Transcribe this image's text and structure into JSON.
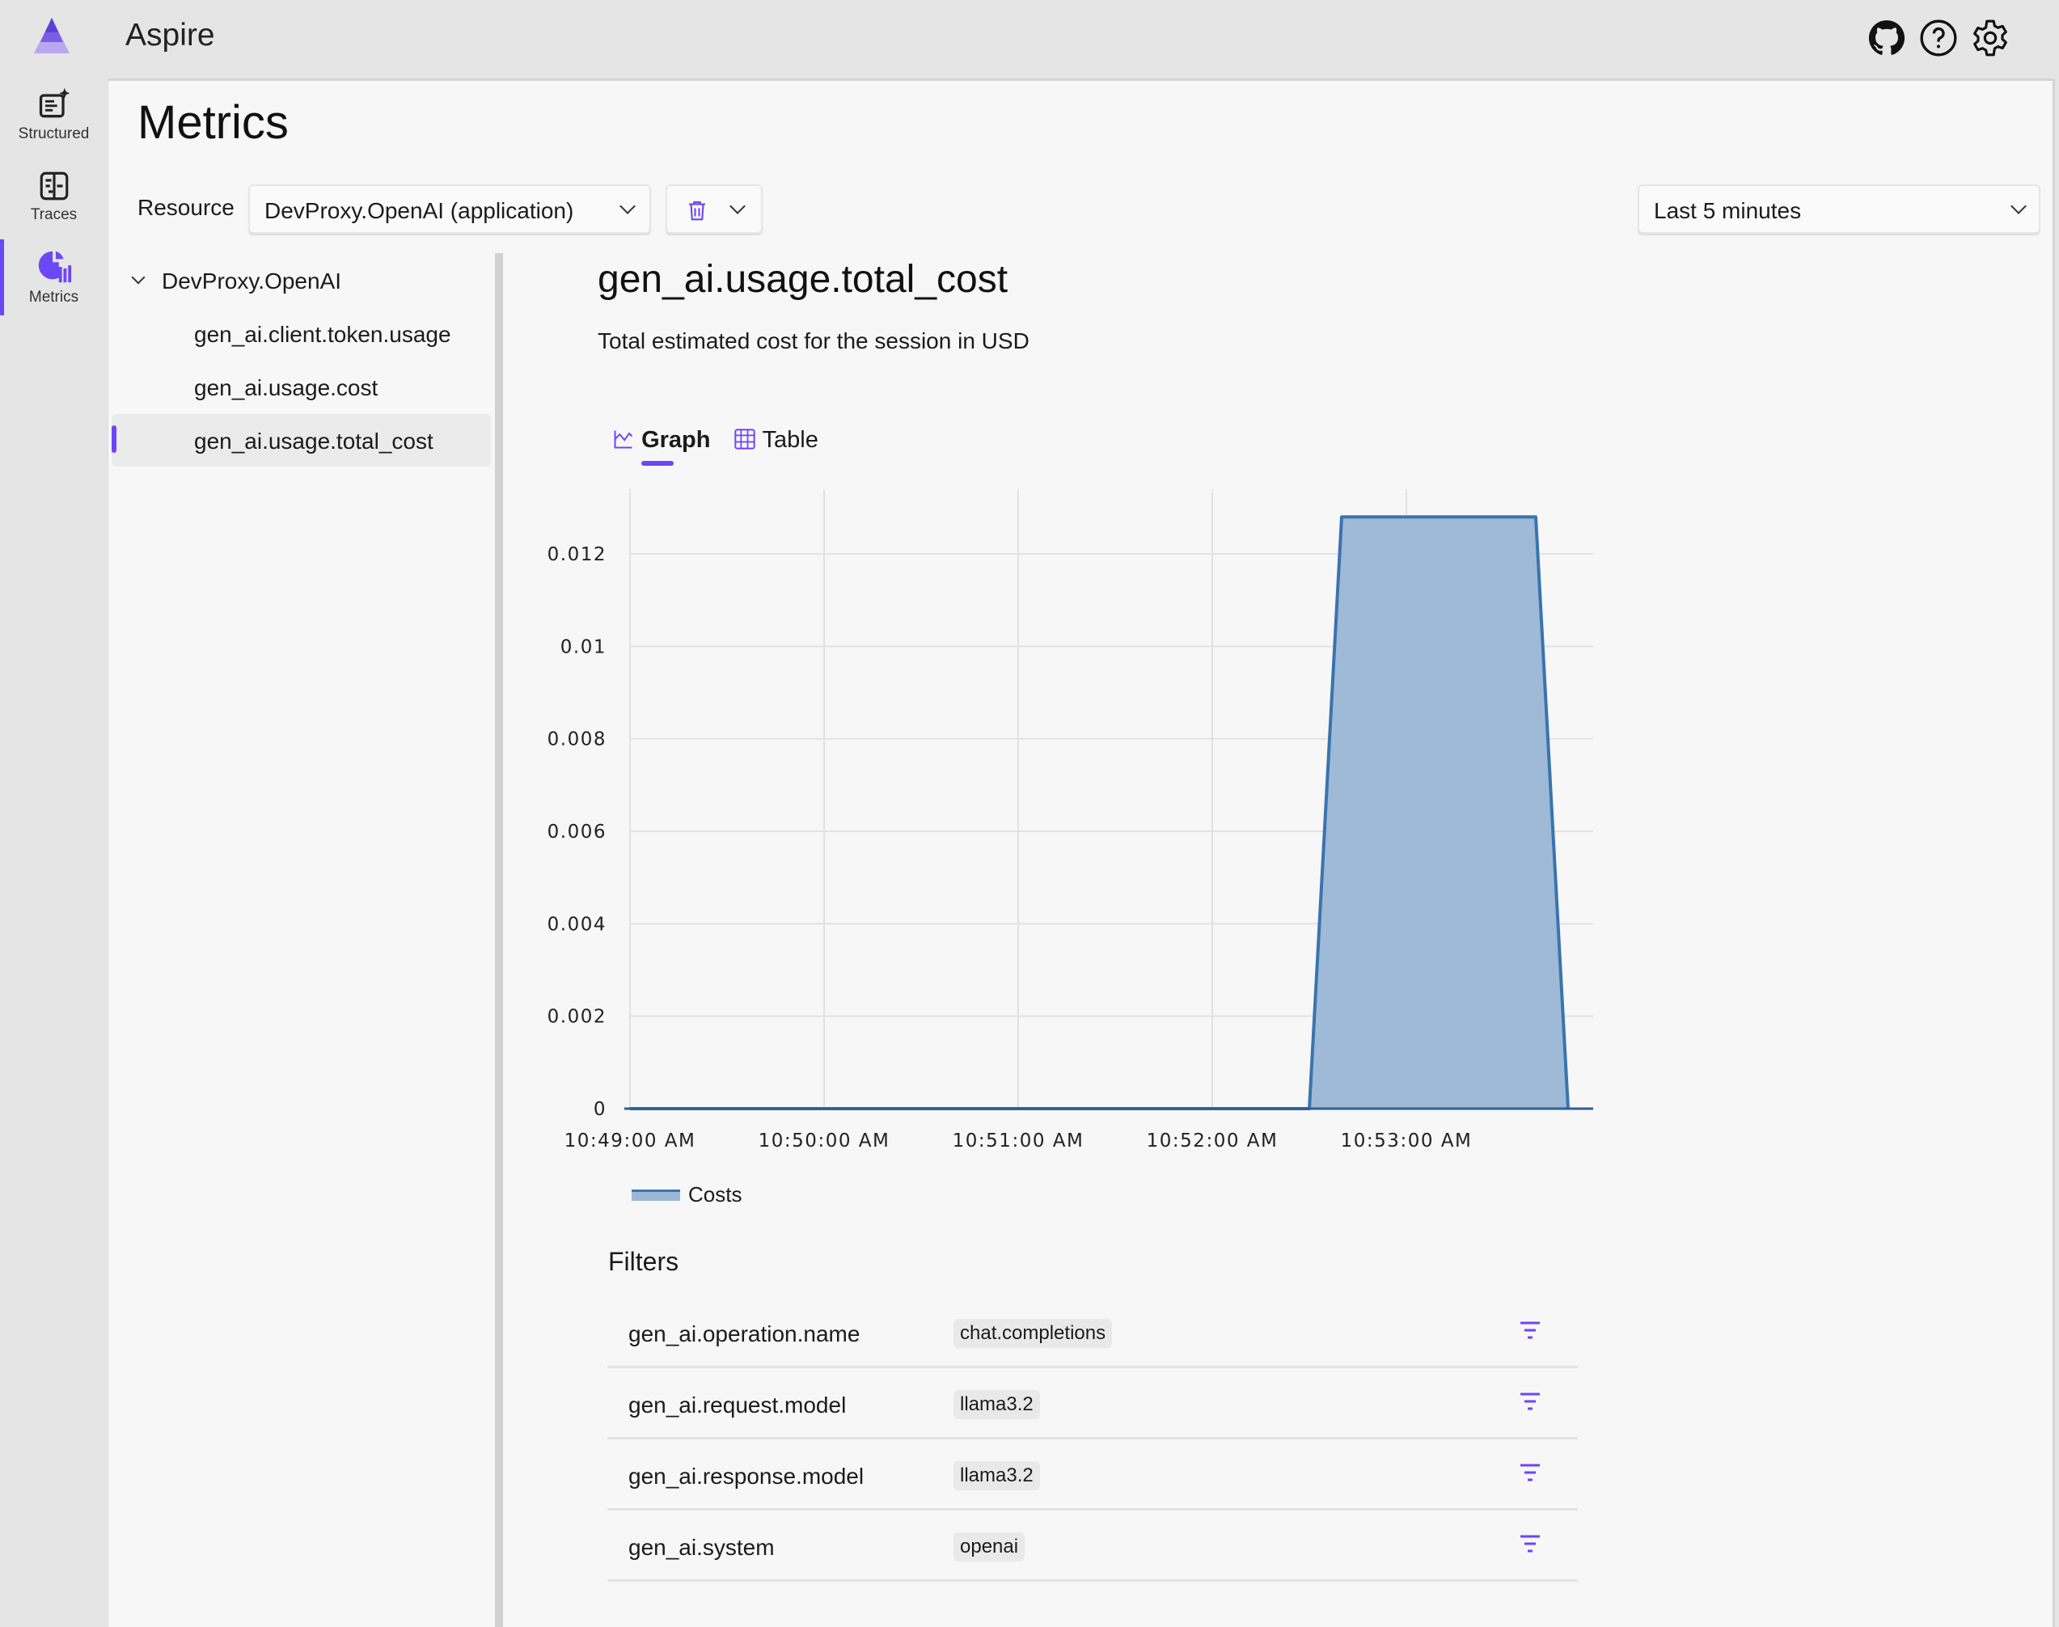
{
  "app": {
    "title": "Aspire",
    "accent": "#6b47f5"
  },
  "topbar": {
    "icons": [
      "github-icon",
      "help-icon",
      "settings-icon"
    ]
  },
  "nav": {
    "items": [
      {
        "label": "Structured",
        "icon": "structured-logs-icon"
      },
      {
        "label": "Traces",
        "icon": "traces-icon"
      },
      {
        "label": "Metrics",
        "icon": "metrics-icon",
        "active": true
      }
    ]
  },
  "page": {
    "title": "Metrics",
    "resource_label": "Resource",
    "resource_value": "DevProxy.OpenAI (application)",
    "time_range": "Last 5 minutes"
  },
  "tree": {
    "root": "DevProxy.OpenAI",
    "items": [
      "gen_ai.client.token.usage",
      "gen_ai.usage.cost",
      "gen_ai.usage.total_cost"
    ],
    "selected": "gen_ai.usage.total_cost"
  },
  "metric": {
    "title": "gen_ai.usage.total_cost",
    "description": "Total estimated cost for the session in USD",
    "tabs": [
      {
        "label": "Graph",
        "active": true
      },
      {
        "label": "Table",
        "active": false
      }
    ]
  },
  "chart_data": {
    "type": "area",
    "x": [
      "10:49:00 AM",
      "10:52:30 AM",
      "10:52:40 AM",
      "10:53:40 AM",
      "10:53:50 AM"
    ],
    "series": [
      {
        "name": "Costs",
        "values": [
          0,
          0,
          0.0128,
          0.0128,
          0
        ],
        "color": "#3a74b0",
        "fill": "#9ab6d4"
      }
    ],
    "xlim": [
      "10:49:00 AM",
      "10:54:00 AM"
    ],
    "xticks": [
      "10:49:00 AM",
      "10:50:00 AM",
      "10:51:00 AM",
      "10:52:00 AM",
      "10:53:00 AM"
    ],
    "ylim": [
      0,
      0.0134
    ],
    "yticks": [
      "0",
      "0.002",
      "0.004",
      "0.006",
      "0.008",
      "0.01",
      "0.012"
    ],
    "grid": true,
    "legend": "bottom-left"
  },
  "filters": {
    "title": "Filters",
    "rows": [
      {
        "name": "gen_ai.operation.name",
        "value": "chat.completions"
      },
      {
        "name": "gen_ai.request.model",
        "value": "llama3.2"
      },
      {
        "name": "gen_ai.response.model",
        "value": "llama3.2"
      },
      {
        "name": "gen_ai.system",
        "value": "openai"
      }
    ]
  }
}
